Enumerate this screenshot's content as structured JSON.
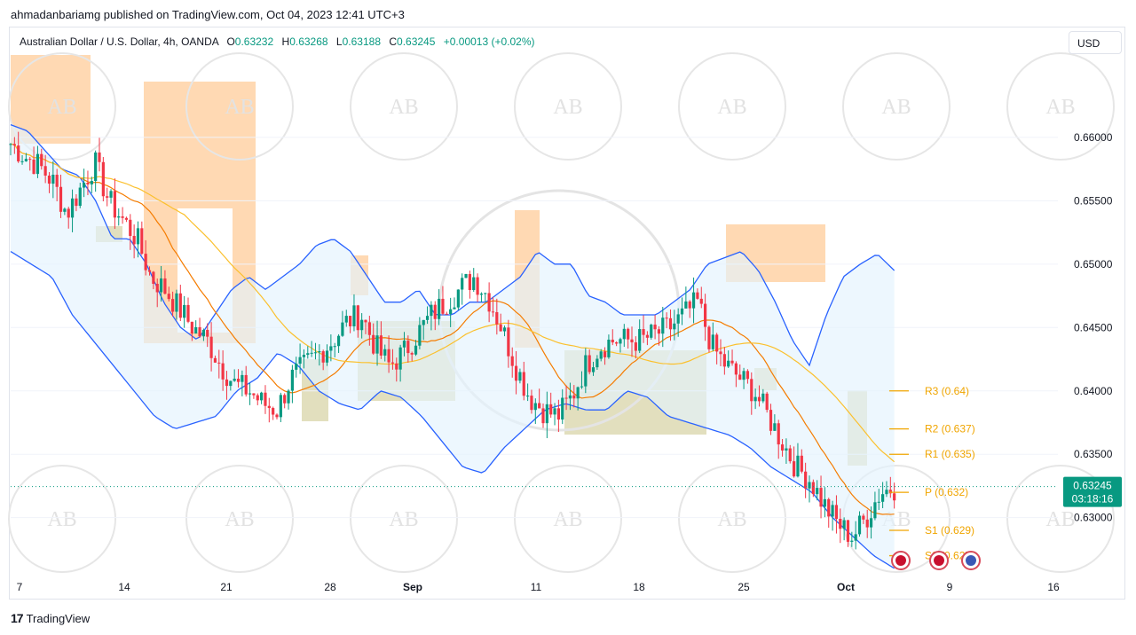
{
  "publisher_line": "ahmadanbariamg published on TradingView.com, Oct 04, 2023 12:41 UTC+3",
  "legend": {
    "symbol": "Australian Dollar / U.S. Dollar, 4h, OANDA",
    "open_label": "O",
    "open": "0.63232",
    "high_label": "H",
    "high": "0.63268",
    "low_label": "L",
    "low": "0.63188",
    "close_label": "C",
    "close": "0.63245",
    "change": "+0.00013 (+0.02%)"
  },
  "currency_button": "USD",
  "footer_brand": "TradingView",
  "footer_logo": "17",
  "colors": {
    "up": "#089981",
    "down": "#f23645",
    "upper_band": "#2962ff",
    "ma_orange": "#f57c00",
    "ma_yellow": "#fbc02d",
    "pivot": "#f0a500",
    "zone_orange": "#ffcc99",
    "zone_olive": "#d8d4a8",
    "band_fill": "#e3f2fd"
  },
  "chart_data": {
    "type": "candlestick",
    "y_ticks": [
      "0.66000",
      "0.65500",
      "0.65000",
      "0.64500",
      "0.64000",
      "0.63500",
      "0.63000"
    ],
    "x_ticks": [
      "7",
      "14",
      "21",
      "28",
      "Sep",
      "11",
      "18",
      "25",
      "Oct",
      "9",
      "16"
    ],
    "ylim": [
      0.6255,
      0.6665
    ],
    "last_price": {
      "value": "0.63245",
      "countdown": "03:18:16"
    },
    "pivots": [
      {
        "label": "R3 (0.64)",
        "value": 0.64
      },
      {
        "label": "R2 (0.637)",
        "value": 0.637
      },
      {
        "label": "R1 (0.635)",
        "value": 0.635
      },
      {
        "label": "P (0.632)",
        "value": 0.632
      },
      {
        "label": "S1 (0.629)",
        "value": 0.629
      },
      {
        "label": "S2 (0.627)",
        "value": 0.627
      }
    ],
    "close_path": [
      0.6595,
      0.6585,
      0.6578,
      0.6565,
      0.654,
      0.656,
      0.658,
      0.655,
      0.6535,
      0.652,
      0.649,
      0.648,
      0.6465,
      0.645,
      0.644,
      0.642,
      0.6405,
      0.64,
      0.639,
      0.6385,
      0.641,
      0.642,
      0.643,
      0.644,
      0.6455,
      0.646,
      0.6435,
      0.642,
      0.643,
      0.6445,
      0.646,
      0.647,
      0.648,
      0.649,
      0.6475,
      0.645,
      0.642,
      0.6395,
      0.6385,
      0.638,
      0.6395,
      0.642,
      0.6435,
      0.644,
      0.644,
      0.644,
      0.6445,
      0.645,
      0.646,
      0.647,
      0.6435,
      0.642,
      0.641,
      0.64,
      0.638,
      0.636,
      0.634,
      0.633,
      0.631,
      0.6295,
      0.6285,
      0.63,
      0.632,
      0.6324
    ],
    "upper_band_path": [
      0.661,
      0.6605,
      0.659,
      0.6575,
      0.657,
      0.655,
      0.652,
      0.652,
      0.65,
      0.647,
      0.645,
      0.644,
      0.646,
      0.648,
      0.649,
      0.648,
      0.649,
      0.65,
      0.6515,
      0.652,
      0.651,
      0.649,
      0.647,
      0.647,
      0.648,
      0.646,
      0.646,
      0.647,
      0.647,
      0.648,
      0.649,
      0.651,
      0.65,
      0.65,
      0.6475,
      0.647,
      0.646,
      0.646,
      0.646,
      0.647,
      0.648,
      0.65,
      0.6505,
      0.651,
      0.6495,
      0.647,
      0.644,
      0.642,
      0.646,
      0.649,
      0.65,
      0.6508,
      0.6495
    ],
    "lower_band_path": [
      0.651,
      0.65,
      0.649,
      0.646,
      0.644,
      0.642,
      0.64,
      0.638,
      0.637,
      0.6375,
      0.638,
      0.64,
      0.641,
      0.643,
      0.642,
      0.64,
      0.639,
      0.6385,
      0.64,
      0.6395,
      0.638,
      0.636,
      0.634,
      0.6335,
      0.6355,
      0.637,
      0.6385,
      0.639,
      0.6385,
      0.6385,
      0.64,
      0.6395,
      0.638,
      0.6375,
      0.637,
      0.6365,
      0.6355,
      0.634,
      0.633,
      0.632,
      0.63,
      0.6285,
      0.627,
      0.626
    ]
  }
}
